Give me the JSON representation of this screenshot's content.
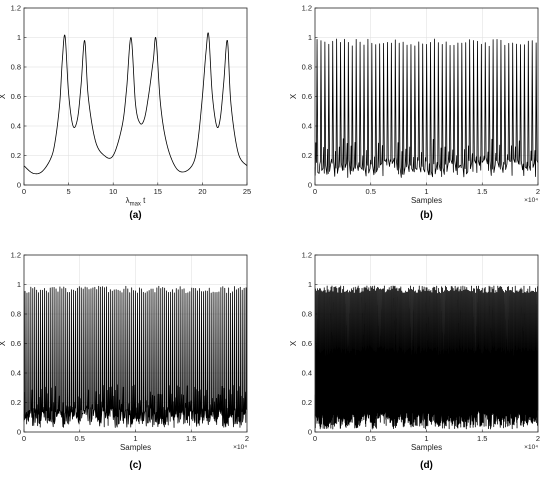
{
  "figure": {
    "panels": [
      {
        "caption": "(a)",
        "xlabel": "λmax t",
        "xlabel_main": "λ",
        "xlabel_sub": "max",
        "xlabel_tail": " t",
        "ylabel": "X",
        "x_exponent": ""
      },
      {
        "caption": "(b)",
        "xlabel": "Samples",
        "xlabel_main": "Samples",
        "xlabel_sub": "",
        "xlabel_tail": "",
        "ylabel": "X",
        "x_exponent": "×10⁴"
      },
      {
        "caption": "(c)",
        "xlabel": "Samples",
        "xlabel_main": "Samples",
        "xlabel_sub": "",
        "xlabel_tail": "",
        "ylabel": "X",
        "x_exponent": "×10⁴"
      },
      {
        "caption": "(d)",
        "xlabel": "Samples",
        "xlabel_main": "Samples",
        "xlabel_sub": "",
        "xlabel_tail": "",
        "ylabel": "X",
        "x_exponent": "×10⁴"
      }
    ]
  },
  "chart_data": [
    {
      "type": "line",
      "xlabel": "λmax t",
      "ylabel": "X",
      "xlim": [
        0,
        25
      ],
      "ylim": [
        0,
        1.2
      ],
      "x_ticks": [
        "0",
        "5",
        "10",
        "15",
        "20",
        "25"
      ],
      "y_ticks": [
        "0",
        "0.2",
        "0.4",
        "0.6",
        "0.8",
        "1",
        "1.2"
      ],
      "grid": true,
      "series": [
        {
          "x": [
            0,
            1,
            2,
            3,
            3.5,
            4,
            4.3,
            4.6,
            5,
            5.5,
            6,
            6.4,
            6.8,
            7.2,
            8,
            9,
            10,
            11,
            11.5,
            12,
            12.5,
            13,
            13.5,
            14,
            14.5,
            14.8,
            15.3,
            16,
            17,
            18,
            19,
            19.5,
            20,
            20.4,
            20.7,
            21.1,
            21.6,
            22,
            22.4,
            22.8,
            23.2,
            24,
            25
          ],
          "y": [
            0.13,
            0.08,
            0.09,
            0.18,
            0.3,
            0.55,
            0.85,
            1.01,
            0.62,
            0.4,
            0.45,
            0.68,
            0.98,
            0.6,
            0.3,
            0.2,
            0.2,
            0.4,
            0.65,
            1.0,
            0.55,
            0.42,
            0.45,
            0.62,
            0.85,
            0.99,
            0.55,
            0.28,
            0.12,
            0.09,
            0.15,
            0.3,
            0.6,
            0.9,
            1.02,
            0.62,
            0.4,
            0.45,
            0.7,
            0.98,
            0.55,
            0.22,
            0.13
          ]
        }
      ]
    },
    {
      "type": "line",
      "xlabel": "Samples",
      "ylabel": "X",
      "xlim": [
        0,
        2
      ],
      "x_multiplier": "×10⁴",
      "ylim": [
        0,
        1.2
      ],
      "x_ticks": [
        "0",
        "0.5",
        "1",
        "1.5",
        "2"
      ],
      "y_ticks": [
        "0",
        "0.2",
        "0.4",
        "0.6",
        "0.8",
        "1",
        "1.2"
      ],
      "grid": true,
      "peak_count": 57,
      "peak_value": 0.99,
      "trough_value": 0.05
    },
    {
      "type": "line",
      "xlabel": "Samples",
      "ylabel": "X",
      "xlim": [
        0,
        2
      ],
      "x_multiplier": "×10⁴",
      "ylim": [
        0,
        1.2
      ],
      "x_ticks": [
        "0",
        "0.5",
        "1",
        "1.5",
        "2"
      ],
      "y_ticks": [
        "0",
        "0.2",
        "0.4",
        "0.6",
        "0.8",
        "1",
        "1.2"
      ],
      "grid": true,
      "peak_count": 115,
      "peak_value": 0.99,
      "trough_value": 0.03
    },
    {
      "type": "line",
      "xlabel": "Samples",
      "ylabel": "X",
      "xlim": [
        0,
        2
      ],
      "x_multiplier": "×10⁴",
      "ylim": [
        0,
        1.2
      ],
      "x_ticks": [
        "0",
        "0.5",
        "1",
        "1.5",
        "2"
      ],
      "y_ticks": [
        "0",
        "0.2",
        "0.4",
        "0.6",
        "0.8",
        "1",
        "1.2"
      ],
      "grid": true,
      "peak_count": 230,
      "peak_value": 0.99,
      "trough_value": 0.02
    }
  ]
}
